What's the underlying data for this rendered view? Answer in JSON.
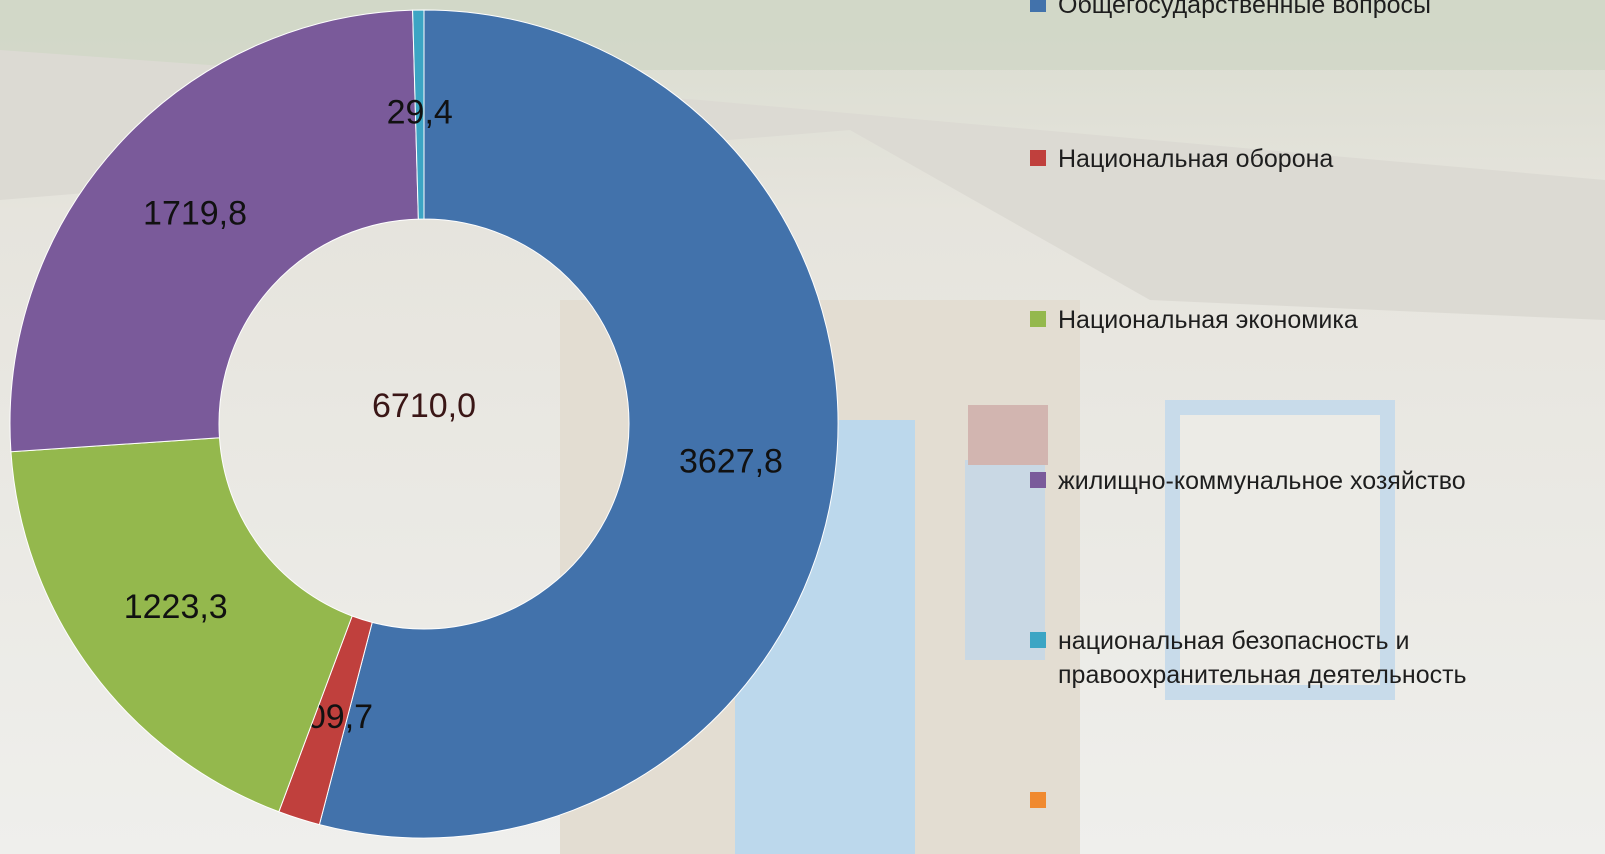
{
  "chart_data": {
    "type": "donut",
    "categories": [
      "Общегосударственные вопросы",
      "Национальная оборона",
      "Национальная экономика",
      "жилищно-коммунальное хозяйство",
      "национальная безопасность и правоохранительная деятельность",
      null
    ],
    "values": [
      3627.8,
      109.7,
      1223.3,
      1719.8,
      29.4,
      null
    ],
    "value_labels": [
      "3627,8",
      "109,7",
      "1223,3",
      "1719,8",
      "29,4",
      null
    ],
    "colors": [
      "#4272ab",
      "#c0403d",
      "#94b84d",
      "#7a5a9a",
      "#3ca5c4",
      "#f08a30"
    ],
    "center_label": "6710,0"
  }
}
